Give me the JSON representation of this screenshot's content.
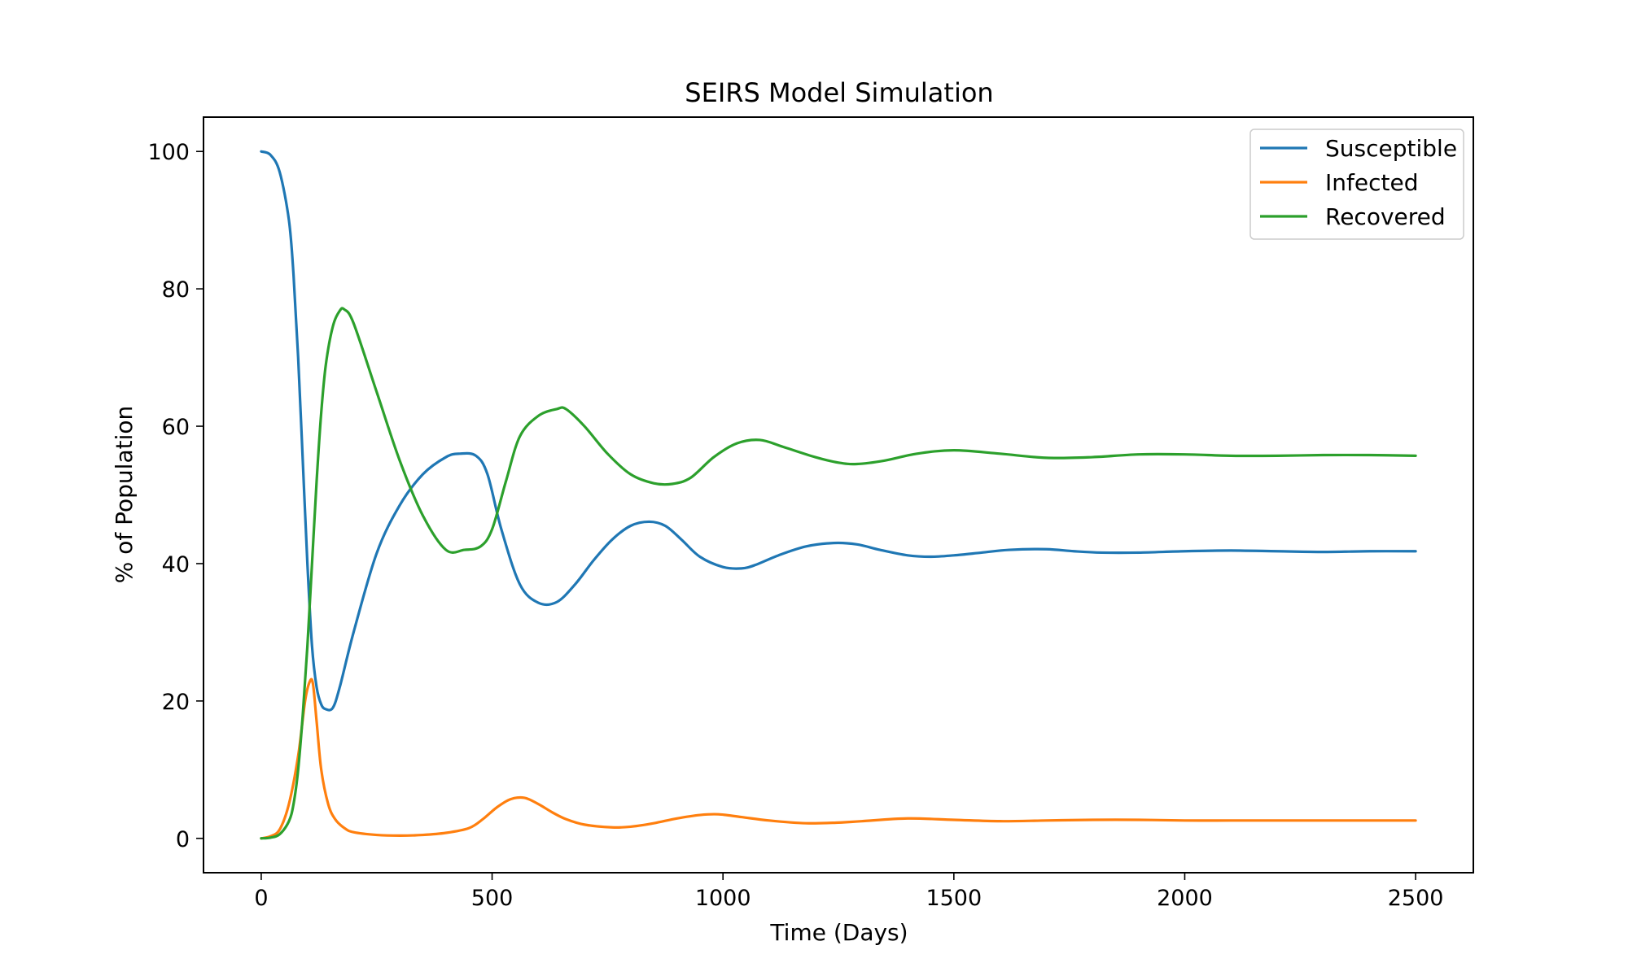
{
  "chart_data": {
    "type": "line",
    "title": "SEIRS Model Simulation",
    "xlabel": "Time (Days)",
    "ylabel": "% of Population",
    "xlim": [
      -125,
      2625
    ],
    "ylim": [
      -5,
      105
    ],
    "xticks": [
      0,
      500,
      1000,
      1500,
      2000,
      2500
    ],
    "yticks": [
      0,
      20,
      40,
      60,
      80,
      100
    ],
    "grid": false,
    "legend_position": "top-right",
    "series": [
      {
        "name": "Susceptible",
        "color": "#1f77b4",
        "x": [
          0,
          20,
          40,
          60,
          70,
          80,
          90,
          100,
          110,
          120,
          130,
          140,
          155,
          170,
          200,
          250,
          300,
          350,
          400,
          430,
          465,
          490,
          520,
          560,
          600,
          640,
          680,
          720,
          760,
          800,
          840,
          875,
          910,
          950,
          1000,
          1040,
          1070,
          1120,
          1180,
          1240,
          1290,
          1340,
          1400,
          1450,
          1500,
          1560,
          1620,
          1700,
          1760,
          1820,
          1900,
          2000,
          2100,
          2200,
          2300,
          2400,
          2500
        ],
        "y": [
          100,
          99.5,
          97,
          90,
          82,
          70,
          55,
          40,
          28,
          22,
          19.5,
          18.8,
          19,
          22,
          30,
          41.5,
          48.5,
          53,
          55.5,
          56,
          55.7,
          53,
          45,
          37,
          34.3,
          34.4,
          37,
          40.5,
          43.5,
          45.5,
          46.1,
          45.5,
          43.5,
          41,
          39.5,
          39.3,
          39.8,
          41.2,
          42.5,
          43,
          42.8,
          42,
          41.2,
          41,
          41.2,
          41.6,
          42,
          42.1,
          41.8,
          41.6,
          41.6,
          41.8,
          41.9,
          41.8,
          41.7,
          41.8,
          41.8
        ]
      },
      {
        "name": "Infected",
        "color": "#ff7f0e",
        "x": [
          0,
          20,
          40,
          60,
          80,
          95,
          105,
          112,
          120,
          130,
          145,
          160,
          180,
          200,
          250,
          300,
          350,
          400,
          450,
          480,
          510,
          540,
          570,
          600,
          630,
          660,
          700,
          760,
          800,
          850,
          900,
          950,
          990,
          1040,
          1100,
          1180,
          1250,
          1300,
          1400,
          1500,
          1600,
          1700,
          1800,
          1900,
          2000,
          2100,
          2200,
          2300,
          2400,
          2500
        ],
        "y": [
          0,
          0.3,
          1.3,
          5,
          12,
          20,
          22.8,
          22.5,
          17,
          10,
          5,
          2.8,
          1.5,
          0.9,
          0.5,
          0.4,
          0.5,
          0.8,
          1.5,
          2.8,
          4.5,
          5.7,
          5.9,
          5,
          3.8,
          2.8,
          2,
          1.6,
          1.7,
          2.2,
          2.9,
          3.4,
          3.5,
          3.1,
          2.6,
          2.2,
          2.3,
          2.5,
          2.9,
          2.7,
          2.5,
          2.6,
          2.7,
          2.7,
          2.6,
          2.6,
          2.6,
          2.6,
          2.6,
          2.6
        ]
      },
      {
        "name": "Recovered",
        "color": "#2ca02c",
        "x": [
          0,
          20,
          40,
          60,
          70,
          80,
          90,
          100,
          110,
          120,
          130,
          140,
          155,
          170,
          180,
          200,
          250,
          300,
          350,
          400,
          440,
          475,
          500,
          530,
          560,
          600,
          640,
          660,
          700,
          750,
          800,
          850,
          890,
          930,
          980,
          1030,
          1080,
          1130,
          1200,
          1250,
          1290,
          1350,
          1420,
          1500,
          1600,
          1700,
          1800,
          1900,
          2000,
          2100,
          2200,
          2300,
          2400,
          2500
        ],
        "y": [
          0,
          0.1,
          0.6,
          2.5,
          5,
          10,
          18,
          28,
          40,
          52,
          62,
          69,
          74.5,
          76.8,
          77,
          75,
          65,
          55,
          47,
          42,
          42,
          42.5,
          45,
          52,
          58.5,
          61.5,
          62.5,
          62.5,
          60,
          56,
          53,
          51.7,
          51.6,
          52.5,
          55.5,
          57.5,
          58,
          57,
          55.5,
          54.7,
          54.5,
          55,
          56,
          56.5,
          56,
          55.4,
          55.5,
          55.9,
          55.9,
          55.7,
          55.7,
          55.8,
          55.8,
          55.7
        ]
      }
    ]
  }
}
